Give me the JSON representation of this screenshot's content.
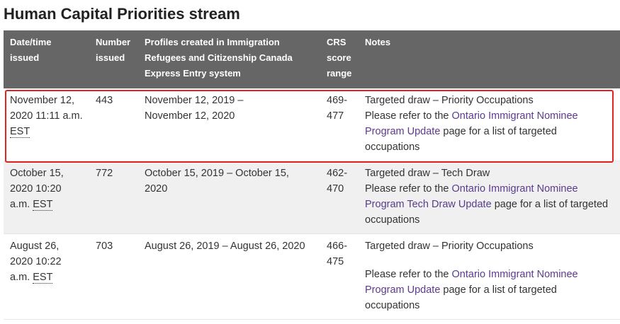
{
  "header": {
    "title": "Human Capital Priorities stream"
  },
  "table": {
    "columns": [
      "Date/time issued",
      "Number issued",
      "Profiles created in Immigration Refugees and Citizenship Canada Express Entry system",
      "CRS score range",
      "Notes"
    ],
    "rows": [
      {
        "date": "November 12, 2020 11:11 a.m.",
        "date_abbr": "EST",
        "number": "443",
        "profiles": "November 12, 2019 – November 12, 2020",
        "crs": "469-477",
        "notes": {
          "draw": "Targeted draw – Priority Occupations",
          "prefix": "Please refer to the",
          "link": "Ontario Immigrant Nominee Program Update",
          "suffix": "page for a list of targeted occupations"
        }
      },
      {
        "date": "October 15, 2020 10:20 a.m.",
        "date_abbr": "EST",
        "number": "772",
        "profiles": "October 15, 2019 – October 15, 2020",
        "crs": "462-470",
        "notes": {
          "draw": "Targeted draw – Tech Draw",
          "prefix": "Please refer to the",
          "link": "Ontario Immigrant Nominee Program Tech Draw Update",
          "suffix": "page for a list of targeted occupations"
        }
      },
      {
        "date": "August 26, 2020 10:22 a.m.",
        "date_abbr": "EST",
        "number": "703",
        "profiles": "August 26, 2019 – August 26, 2020",
        "crs": "466-475",
        "notes": {
          "draw": "Targeted draw – Priority Occupations",
          "prefix": "Please refer to the",
          "link": "Ontario Immigrant Nominee Program Update",
          "suffix": "page for a list of targeted occupations"
        }
      }
    ]
  }
}
